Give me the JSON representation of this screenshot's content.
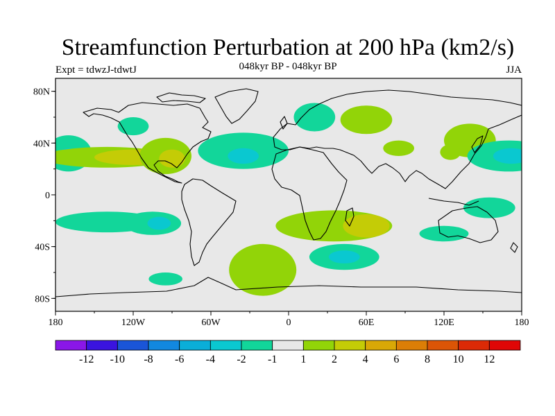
{
  "figure": {
    "title": "Streamfunction Perturbation at 200 hPa (km2/s)",
    "left_subtitle": "Expt = tdwzJ-tdwtJ",
    "center_subtitle": "048kyr BP - 048kyr BP",
    "right_subtitle": "JJA"
  },
  "map": {
    "background_color": "#e8e8e8",
    "lon_ticks": [
      "180",
      "120W",
      "60W",
      "0",
      "60E",
      "120E",
      "180"
    ],
    "lat_ticks": [
      "80N",
      "40N",
      "0",
      "40S",
      "80S"
    ],
    "lon_range": [
      -180,
      180
    ],
    "lat_range": [
      -90,
      90
    ],
    "anomalies": [
      {
        "lon": -170,
        "lat": 32,
        "rlon": 18,
        "rlat": 14,
        "level": -2
      },
      {
        "lon": -170,
        "lat": 30,
        "rlon": 8,
        "rlat": 6,
        "level": -4
      },
      {
        "lon": -140,
        "lat": 29,
        "rlon": 50,
        "rlat": 8,
        "level": 1
      },
      {
        "lon": -120,
        "lat": 29,
        "rlon": 30,
        "rlat": 6,
        "level": 2
      },
      {
        "lon": -95,
        "lat": 30,
        "rlon": 20,
        "rlat": 14,
        "level": 1
      },
      {
        "lon": -90,
        "lat": 28,
        "rlon": 10,
        "rlat": 7,
        "level": 2
      },
      {
        "lon": -120,
        "lat": 53,
        "rlon": 12,
        "rlat": 7,
        "level": -2
      },
      {
        "lon": -35,
        "lat": 34,
        "rlon": 35,
        "rlat": 14,
        "level": -2
      },
      {
        "lon": -35,
        "lat": 30,
        "rlon": 12,
        "rlat": 6,
        "level": -4
      },
      {
        "lon": 20,
        "lat": 60,
        "rlon": 16,
        "rlat": 11,
        "level": -2
      },
      {
        "lon": 60,
        "lat": 58,
        "rlon": 20,
        "rlat": 11,
        "level": 1
      },
      {
        "lon": 85,
        "lat": 36,
        "rlon": 12,
        "rlat": 6,
        "level": 1
      },
      {
        "lon": 140,
        "lat": 42,
        "rlon": 20,
        "rlat": 13,
        "level": 1
      },
      {
        "lon": 125,
        "lat": 33,
        "rlon": 8,
        "rlat": 6,
        "level": 1
      },
      {
        "lon": 170,
        "lat": 30,
        "rlon": 32,
        "rlat": 12,
        "level": -2
      },
      {
        "lon": 172,
        "lat": 30,
        "rlon": 14,
        "rlat": 6,
        "level": -4
      },
      {
        "lon": -140,
        "lat": -21,
        "rlon": 40,
        "rlat": 8,
        "level": -2
      },
      {
        "lon": -105,
        "lat": -22,
        "rlon": 22,
        "rlat": 9,
        "level": -2
      },
      {
        "lon": -100,
        "lat": -22,
        "rlon": 9,
        "rlat": 5,
        "level": -4
      },
      {
        "lon": 35,
        "lat": -24,
        "rlon": 45,
        "rlat": 12,
        "level": 1
      },
      {
        "lon": 60,
        "lat": -24,
        "rlon": 18,
        "rlat": 9,
        "level": 2
      },
      {
        "lon": 120,
        "lat": -30,
        "rlon": 19,
        "rlat": 6,
        "level": -2
      },
      {
        "lon": 155,
        "lat": -10,
        "rlon": 20,
        "rlat": 8,
        "level": -2
      },
      {
        "lon": -20,
        "lat": -58,
        "rlon": 26,
        "rlat": 20,
        "level": 1
      },
      {
        "lon": 43,
        "lat": -48,
        "rlon": 27,
        "rlat": 10,
        "level": -2
      },
      {
        "lon": 43,
        "lat": -48,
        "rlon": 12,
        "rlat": 5,
        "level": -4
      },
      {
        "lon": -95,
        "lat": -65,
        "rlon": 13,
        "rlat": 5,
        "level": -2
      }
    ]
  },
  "colorbar": {
    "colors": [
      "#8a17e8",
      "#3a14e0",
      "#1a55d8",
      "#1288e0",
      "#0aaed8",
      "#0ac8d0",
      "#12d69a",
      "#e8e8e8",
      "#92d408",
      "#c4cc06",
      "#d9a806",
      "#dc7e06",
      "#dc5506",
      "#dc2a06",
      "#e00606"
    ],
    "labels": [
      "-12",
      "-10",
      "-8",
      "-6",
      "-4",
      "-2",
      "-1",
      "1",
      "2",
      "4",
      "6",
      "8",
      "10",
      "12"
    ]
  }
}
